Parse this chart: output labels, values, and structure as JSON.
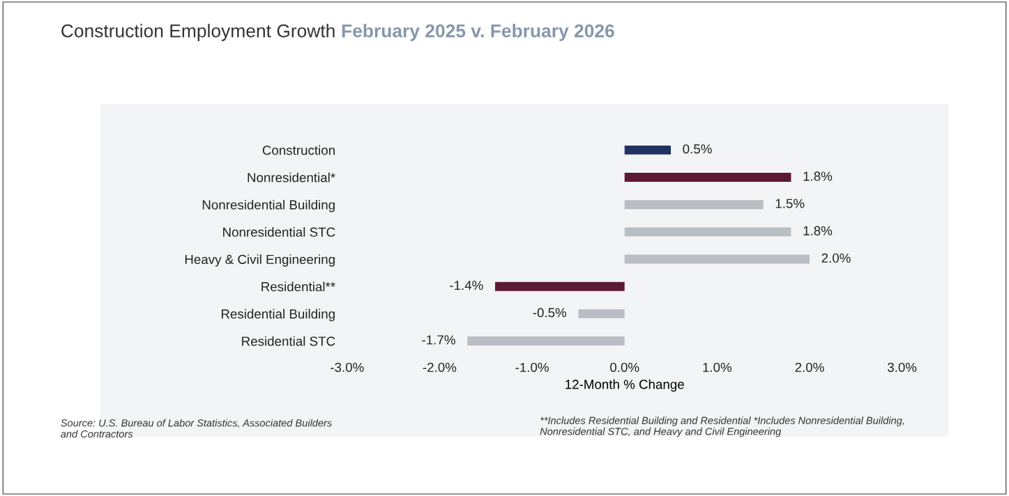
{
  "chart_data": {
    "type": "bar",
    "orientation": "horizontal",
    "title": "Construction Employment Growth",
    "subtitle": "February 2025 v. February 2026",
    "categories": [
      "Construction",
      "Nonresidential*",
      "Nonresidential Building",
      "Nonresidential STC",
      "Heavy & Civil Engineering",
      "Residential**",
      "Residential Building",
      "Residential STC"
    ],
    "values": [
      0.5,
      1.8,
      1.5,
      1.8,
      2.0,
      -1.4,
      -0.5,
      -1.7
    ],
    "colors": [
      "#1f3462",
      "#5b1a30",
      "#b9bec5",
      "#b9bec5",
      "#b9bec5",
      "#5b1a30",
      "#b9bec5",
      "#b9bec5"
    ],
    "value_labels": [
      "0.5%",
      "1.8%",
      "1.5%",
      "1.8%",
      "2.0%",
      "-1.4%",
      "-0.5%",
      "-1.7%"
    ],
    "xlim": [
      -3,
      3
    ],
    "xticks": [
      {
        "value": -3,
        "label": "-3.0%"
      },
      {
        "value": -2,
        "label": "-2.0%"
      },
      {
        "value": -1,
        "label": "-1.0%"
      },
      {
        "value": 0,
        "label": "0.0%"
      },
      {
        "value": 1,
        "label": "1.0%"
      },
      {
        "value": 2,
        "label": "2.0%"
      },
      {
        "value": 3,
        "label": "3.0%"
      }
    ],
    "xlabel": "12-Month % Change",
    "grid": false,
    "legend": false,
    "annotations": [
      "Source: U.S. Bureau of Labor Statistics, Associated Builders and Contractors",
      "**Includes Residential Building and Residential *Includes Nonresidential Building, Nonresidential STC, and Heavy and Civil Engineering"
    ]
  }
}
